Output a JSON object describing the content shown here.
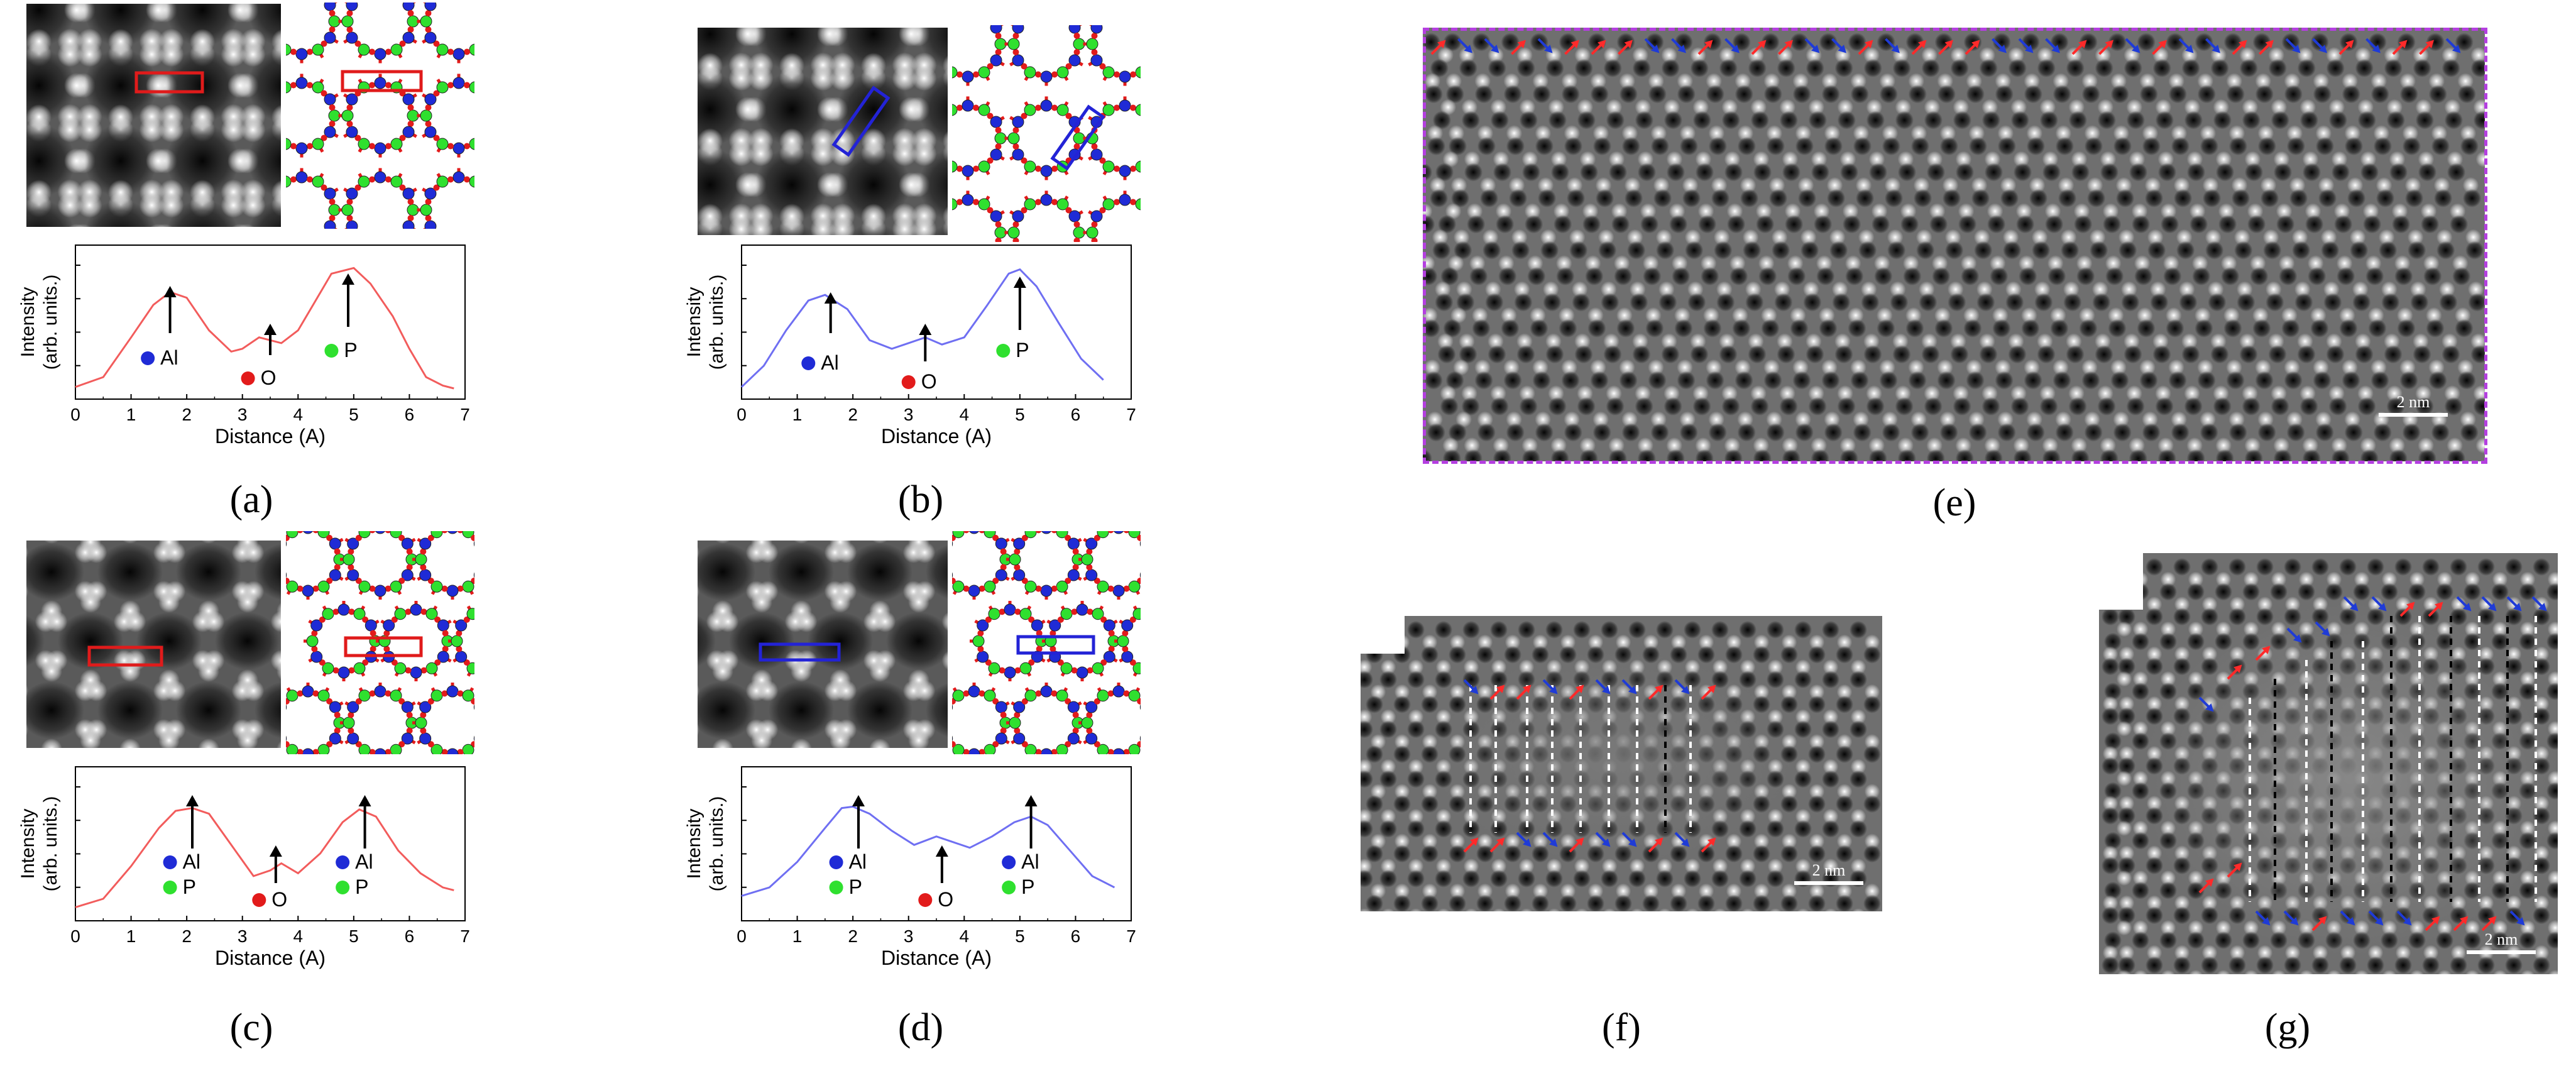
{
  "panels": {
    "a": {
      "caption": "(a)",
      "plot_color": "#f25c5c",
      "box_color": "#e01b1b",
      "labels": [
        {
          "element": "Al",
          "color": "#1f2bd6"
        },
        {
          "element": "O",
          "color": "#e21b1b"
        },
        {
          "element": "P",
          "color": "#2fe02f"
        }
      ]
    },
    "b": {
      "caption": "(b)",
      "plot_color": "#6f6ff2",
      "box_color": "#2323d6",
      "labels": [
        {
          "element": "Al",
          "color": "#1f2bd6"
        },
        {
          "element": "O",
          "color": "#e21b1b"
        },
        {
          "element": "P",
          "color": "#2fe02f"
        }
      ]
    },
    "c": {
      "caption": "(c)",
      "plot_color": "#f25c5c",
      "box_color": "#e01b1b",
      "labels": [
        {
          "element": "Al",
          "color": "#1f2bd6"
        },
        {
          "element": "P",
          "color": "#2fe02f"
        },
        {
          "element": "O",
          "color": "#e21b1b"
        },
        {
          "element": "Al",
          "color": "#1f2bd6"
        },
        {
          "element": "P",
          "color": "#2fe02f"
        }
      ]
    },
    "d": {
      "caption": "(d)",
      "plot_color": "#6f6ff2",
      "box_color": "#2323d6",
      "labels": [
        {
          "element": "Al",
          "color": "#1f2bd6"
        },
        {
          "element": "P",
          "color": "#2fe02f"
        },
        {
          "element": "O",
          "color": "#e21b1b"
        },
        {
          "element": "Al",
          "color": "#1f2bd6"
        },
        {
          "element": "P",
          "color": "#2fe02f"
        }
      ]
    },
    "e": {
      "caption": "(e)",
      "scale_bar": "2 nm",
      "border_color": "#b43fe0"
    },
    "f": {
      "caption": "(f)",
      "scale_bar": "2 nm"
    },
    "g": {
      "caption": "(g)",
      "scale_bar": "2 nm"
    }
  },
  "axes": {
    "xlabel": "Distance (A)",
    "ylabel_line1": "Intensity",
    "ylabel_line2": "(arb. units.)",
    "xticks": [
      "0",
      "1",
      "2",
      "3",
      "4",
      "5",
      "6",
      "7"
    ]
  },
  "arrow_colors": {
    "red": "#ff2a2a",
    "blue": "#1f3bd6"
  },
  "chart_data": [
    {
      "type": "line",
      "panel": "a",
      "xlabel": "Distance (A)",
      "ylabel": "Intensity (arb. units.)",
      "xlim": [
        0,
        7
      ],
      "x": [
        0,
        0.5,
        1.0,
        1.4,
        1.7,
        2.0,
        2.4,
        2.8,
        3.0,
        3.3,
        3.5,
        3.7,
        4.0,
        4.3,
        4.6,
        5.0,
        5.3,
        5.7,
        6.0,
        6.3,
        6.6,
        6.8
      ],
      "y": [
        0.05,
        0.12,
        0.4,
        0.63,
        0.72,
        0.68,
        0.45,
        0.3,
        0.32,
        0.4,
        0.38,
        0.36,
        0.45,
        0.65,
        0.85,
        0.89,
        0.78,
        0.55,
        0.32,
        0.12,
        0.06,
        0.04
      ],
      "annotations": [
        "Al",
        "O",
        "P"
      ]
    },
    {
      "type": "line",
      "panel": "b",
      "xlabel": "Distance (A)",
      "ylabel": "Intensity (arb. units.)",
      "xlim": [
        0,
        7
      ],
      "x": [
        0,
        0.4,
        0.8,
        1.2,
        1.5,
        1.9,
        2.3,
        2.7,
        3.0,
        3.3,
        3.6,
        4.0,
        4.4,
        4.8,
        5.0,
        5.3,
        5.7,
        6.1,
        6.5
      ],
      "y": [
        0.05,
        0.2,
        0.45,
        0.66,
        0.7,
        0.6,
        0.38,
        0.32,
        0.36,
        0.4,
        0.35,
        0.4,
        0.62,
        0.85,
        0.88,
        0.76,
        0.5,
        0.25,
        0.1
      ],
      "annotations": [
        "Al",
        "O",
        "P"
      ]
    },
    {
      "type": "line",
      "panel": "c",
      "xlabel": "Distance (A)",
      "ylabel": "Intensity (arb. units.)",
      "xlim": [
        0,
        7
      ],
      "x": [
        0,
        0.5,
        1.0,
        1.5,
        1.8,
        2.1,
        2.4,
        2.8,
        3.2,
        3.5,
        3.7,
        4.0,
        4.4,
        4.8,
        5.1,
        5.4,
        5.8,
        6.2,
        6.6,
        6.8
      ],
      "y": [
        0.06,
        0.12,
        0.35,
        0.62,
        0.74,
        0.76,
        0.72,
        0.5,
        0.28,
        0.32,
        0.37,
        0.3,
        0.44,
        0.66,
        0.75,
        0.7,
        0.46,
        0.3,
        0.2,
        0.18
      ],
      "annotations": [
        "Al",
        "P",
        "O",
        "Al",
        "P"
      ]
    },
    {
      "type": "line",
      "panel": "d",
      "xlabel": "Distance (A)",
      "ylabel": "Intensity (arb. units.)",
      "xlim": [
        0,
        7
      ],
      "x": [
        0,
        0.5,
        1.0,
        1.5,
        1.8,
        2.0,
        2.3,
        2.7,
        3.1,
        3.5,
        3.8,
        4.1,
        4.5,
        4.9,
        5.2,
        5.5,
        5.9,
        6.3,
        6.7
      ],
      "y": [
        0.14,
        0.2,
        0.38,
        0.62,
        0.76,
        0.77,
        0.72,
        0.6,
        0.5,
        0.56,
        0.52,
        0.48,
        0.56,
        0.66,
        0.7,
        0.64,
        0.46,
        0.28,
        0.2
      ],
      "annotations": [
        "Al",
        "P",
        "O",
        "Al",
        "P"
      ]
    }
  ]
}
